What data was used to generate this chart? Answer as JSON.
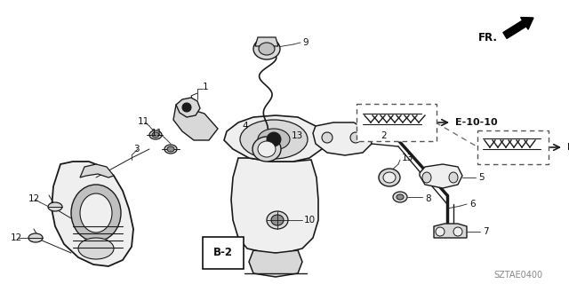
{
  "bg_color": "#ffffff",
  "fig_width": 6.4,
  "fig_height": 3.2,
  "dpi": 100,
  "watermark": "SZTAE0400",
  "line_color": "#1a1a1a",
  "gray_fill": "#d8d8d8",
  "light_fill": "#efefef",
  "mid_fill": "#c0c0c0",
  "dark_fill": "#909090"
}
